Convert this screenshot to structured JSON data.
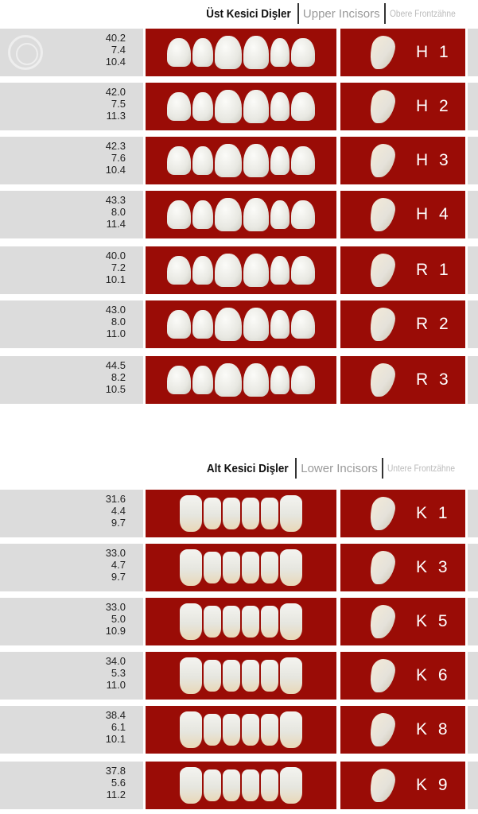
{
  "upper": {
    "title_tr": "Üst Kesici Dişler",
    "title_en": "Upper Incisors",
    "title_de": "Obere Frontzähne",
    "logo": "fray",
    "rows": [
      {
        "values": [
          "40.2",
          "7.4",
          "10.4"
        ],
        "code": "H 1"
      },
      {
        "values": [
          "42.0",
          "7.5",
          "11.3"
        ],
        "code": "H 2"
      },
      {
        "values": [
          "42.3",
          "7.6",
          "10.4"
        ],
        "code": "H 3"
      },
      {
        "values": [
          "43.3",
          "8.0",
          "11.4"
        ],
        "code": "H 4"
      },
      {
        "values": [
          "40.0",
          "7.2",
          "10.1"
        ],
        "code": "R 1"
      },
      {
        "values": [
          "43.0",
          "8.0",
          "11.0"
        ],
        "code": "R 2"
      },
      {
        "values": [
          "44.5",
          "8.2",
          "10.5"
        ],
        "code": "R 3"
      }
    ]
  },
  "lower": {
    "title_tr": "Alt Kesici Dişler",
    "title_en": "Lower Incisors",
    "title_de": "Untere Frontzähne",
    "rows": [
      {
        "values": [
          "31.6",
          "4.4",
          "9.7"
        ],
        "code": "K 1"
      },
      {
        "values": [
          "33.0",
          "4.7",
          "9.7"
        ],
        "code": "K 3"
      },
      {
        "values": [
          "33.0",
          "5.0",
          "10.9"
        ],
        "code": "K 5"
      },
      {
        "values": [
          "34.0",
          "5.3",
          "11.0"
        ],
        "code": "K 6"
      },
      {
        "values": [
          "38.4",
          "6.1",
          "10.1"
        ],
        "code": "K 8"
      },
      {
        "values": [
          "37.8",
          "5.6",
          "11.2"
        ],
        "code": "K 9"
      }
    ]
  },
  "colors": {
    "panel": "#9a0c06",
    "measure_bg": "#dcdcdc"
  }
}
